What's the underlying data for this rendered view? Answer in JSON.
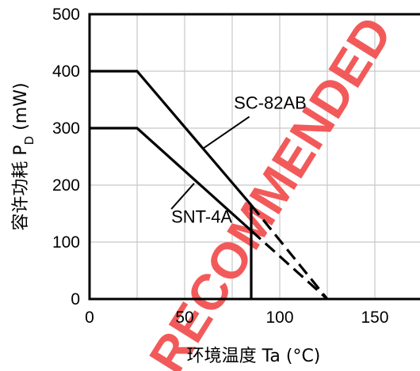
{
  "chart_data": {
    "type": "line",
    "xlabel": "环境温度 Ta (°C)",
    "ylabel_main": "容许功耗 P",
    "ylabel_sub": "D",
    "ylabel_unit": " (mW)",
    "xlim": [
      0,
      175
    ],
    "ylim": [
      0,
      500
    ],
    "xticks": [
      0,
      50,
      100,
      150
    ],
    "yticks": [
      0,
      100,
      200,
      300,
      400,
      500
    ],
    "x_gridlines": [
      25,
      50,
      75,
      100,
      125,
      150
    ],
    "y_gridlines": [
      100,
      200,
      300,
      400
    ],
    "series": [
      {
        "name": "SC-82AB",
        "solid": [
          [
            0,
            400
          ],
          [
            25,
            400
          ],
          [
            85,
            165
          ]
        ],
        "dashed": [
          [
            85,
            165
          ],
          [
            125,
            0
          ]
        ],
        "label_x": 95,
        "label_y": 345,
        "leader": [
          [
            84,
            320
          ],
          [
            60,
            265
          ]
        ]
      },
      {
        "name": "SNT-4A",
        "solid": [
          [
            0,
            300
          ],
          [
            25,
            300
          ],
          [
            85,
            120
          ]
        ],
        "dashed": [
          [
            85,
            120
          ],
          [
            125,
            0
          ]
        ],
        "label_x": 59,
        "label_y": 145,
        "leader": [
          [
            43,
            158
          ],
          [
            55,
            203
          ]
        ]
      }
    ],
    "cutoff": {
      "x": 85,
      "y_top": 165,
      "y_bottom": 0
    },
    "watermark": "RECOMMENDED",
    "colors": {
      "line": "#000000",
      "grid": "#c8c8c8",
      "watermark": "#f25a5a"
    }
  }
}
